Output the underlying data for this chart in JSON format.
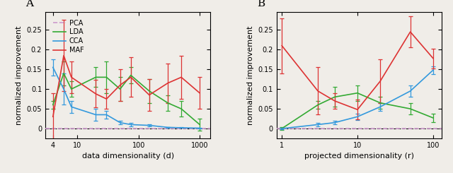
{
  "panel_A": {
    "x": [
      4,
      6,
      8,
      20,
      30,
      50,
      75,
      150,
      300,
      500,
      1000
    ],
    "PCA": {
      "y": [
        0,
        0,
        0,
        0,
        0,
        0,
        0,
        0,
        0,
        0,
        0
      ],
      "yerr": [
        0,
        0,
        0,
        0,
        0,
        0,
        0,
        0,
        0,
        0,
        0
      ]
    },
    "LDA": {
      "y": [
        0.06,
        0.14,
        0.1,
        0.13,
        0.13,
        0.1,
        0.135,
        0.095,
        0.065,
        0.05,
        0.01
      ],
      "yerr": [
        0.01,
        0.03,
        0.02,
        0.025,
        0.04,
        0.03,
        0.02,
        0.03,
        0.02,
        0.02,
        0.015
      ]
    },
    "CCA": {
      "y": [
        0.155,
        0.1,
        0.055,
        0.035,
        0.035,
        0.015,
        0.01,
        0.008,
        0.003,
        0.002,
        0.001
      ],
      "yerr": [
        0.02,
        0.04,
        0.015,
        0.015,
        0.01,
        0.005,
        0.004,
        0.003,
        0.001,
        0.001,
        0.001
      ]
    },
    "MAF": {
      "y": [
        0.03,
        0.185,
        0.13,
        0.088,
        0.075,
        0.11,
        0.13,
        0.085,
        0.115,
        0.13,
        0.09
      ],
      "yerr": [
        0.06,
        0.09,
        0.04,
        0.035,
        0.025,
        0.04,
        0.05,
        0.04,
        0.05,
        0.055,
        0.04
      ]
    },
    "xlabel": "data dimensionality (d)",
    "ylabel": "normalized improvement",
    "title": "A",
    "xlim": [
      3,
      1500
    ],
    "ylim": [
      -0.025,
      0.295
    ]
  },
  "panel_B": {
    "x": [
      1,
      3,
      5,
      10,
      20,
      50,
      100
    ],
    "PCA": {
      "y": [
        0,
        0,
        0,
        0,
        0,
        0,
        0
      ],
      "yerr": [
        0,
        0,
        0,
        0,
        0,
        0,
        0
      ]
    },
    "LDA": {
      "y": [
        0.0,
        0.06,
        0.08,
        0.09,
        0.065,
        0.05,
        0.027
      ],
      "yerr": [
        0.003,
        0.01,
        0.025,
        0.02,
        0.015,
        0.015,
        0.01
      ]
    },
    "CCA": {
      "y": [
        0.0,
        0.01,
        0.015,
        0.03,
        0.055,
        0.095,
        0.148
      ],
      "yerr": [
        0.002,
        0.005,
        0.005,
        0.008,
        0.01,
        0.015,
        0.01
      ]
    },
    "MAF": {
      "y": [
        0.21,
        0.095,
        0.07,
        0.048,
        0.12,
        0.245,
        0.178
      ],
      "yerr": [
        0.07,
        0.06,
        0.02,
        0.025,
        0.055,
        0.04,
        0.025
      ]
    },
    "xlabel": "projected dimensionality (r)",
    "ylabel": "normalized improvement",
    "title": "B",
    "xlim": [
      0.85,
      130
    ],
    "ylim": [
      -0.025,
      0.295
    ]
  },
  "colors": {
    "PCA": "#CC99CC",
    "LDA": "#33AA33",
    "CCA": "#3399DD",
    "MAF": "#DD3333"
  },
  "bg_color": "#F0EDE8",
  "legend_labels": [
    "PCA",
    "LDA",
    "CCA",
    "MAF"
  ]
}
